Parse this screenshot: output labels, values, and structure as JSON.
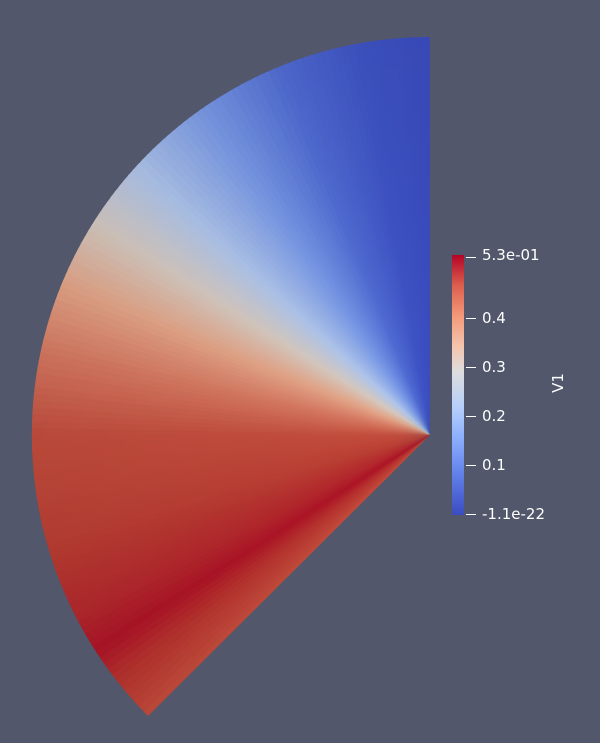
{
  "scalar_bar": {
    "title": "V1",
    "labels": {
      "max": "5.3e-01",
      "t04": "0.4",
      "t03": "0.3",
      "t02": "0.2",
      "t01": "0.1",
      "min": "-1.1e-22"
    }
  },
  "colors": {
    "background": "#52576b",
    "low": "#3b4cc0",
    "mid": "#dddddd",
    "high": "#b40426"
  }
}
